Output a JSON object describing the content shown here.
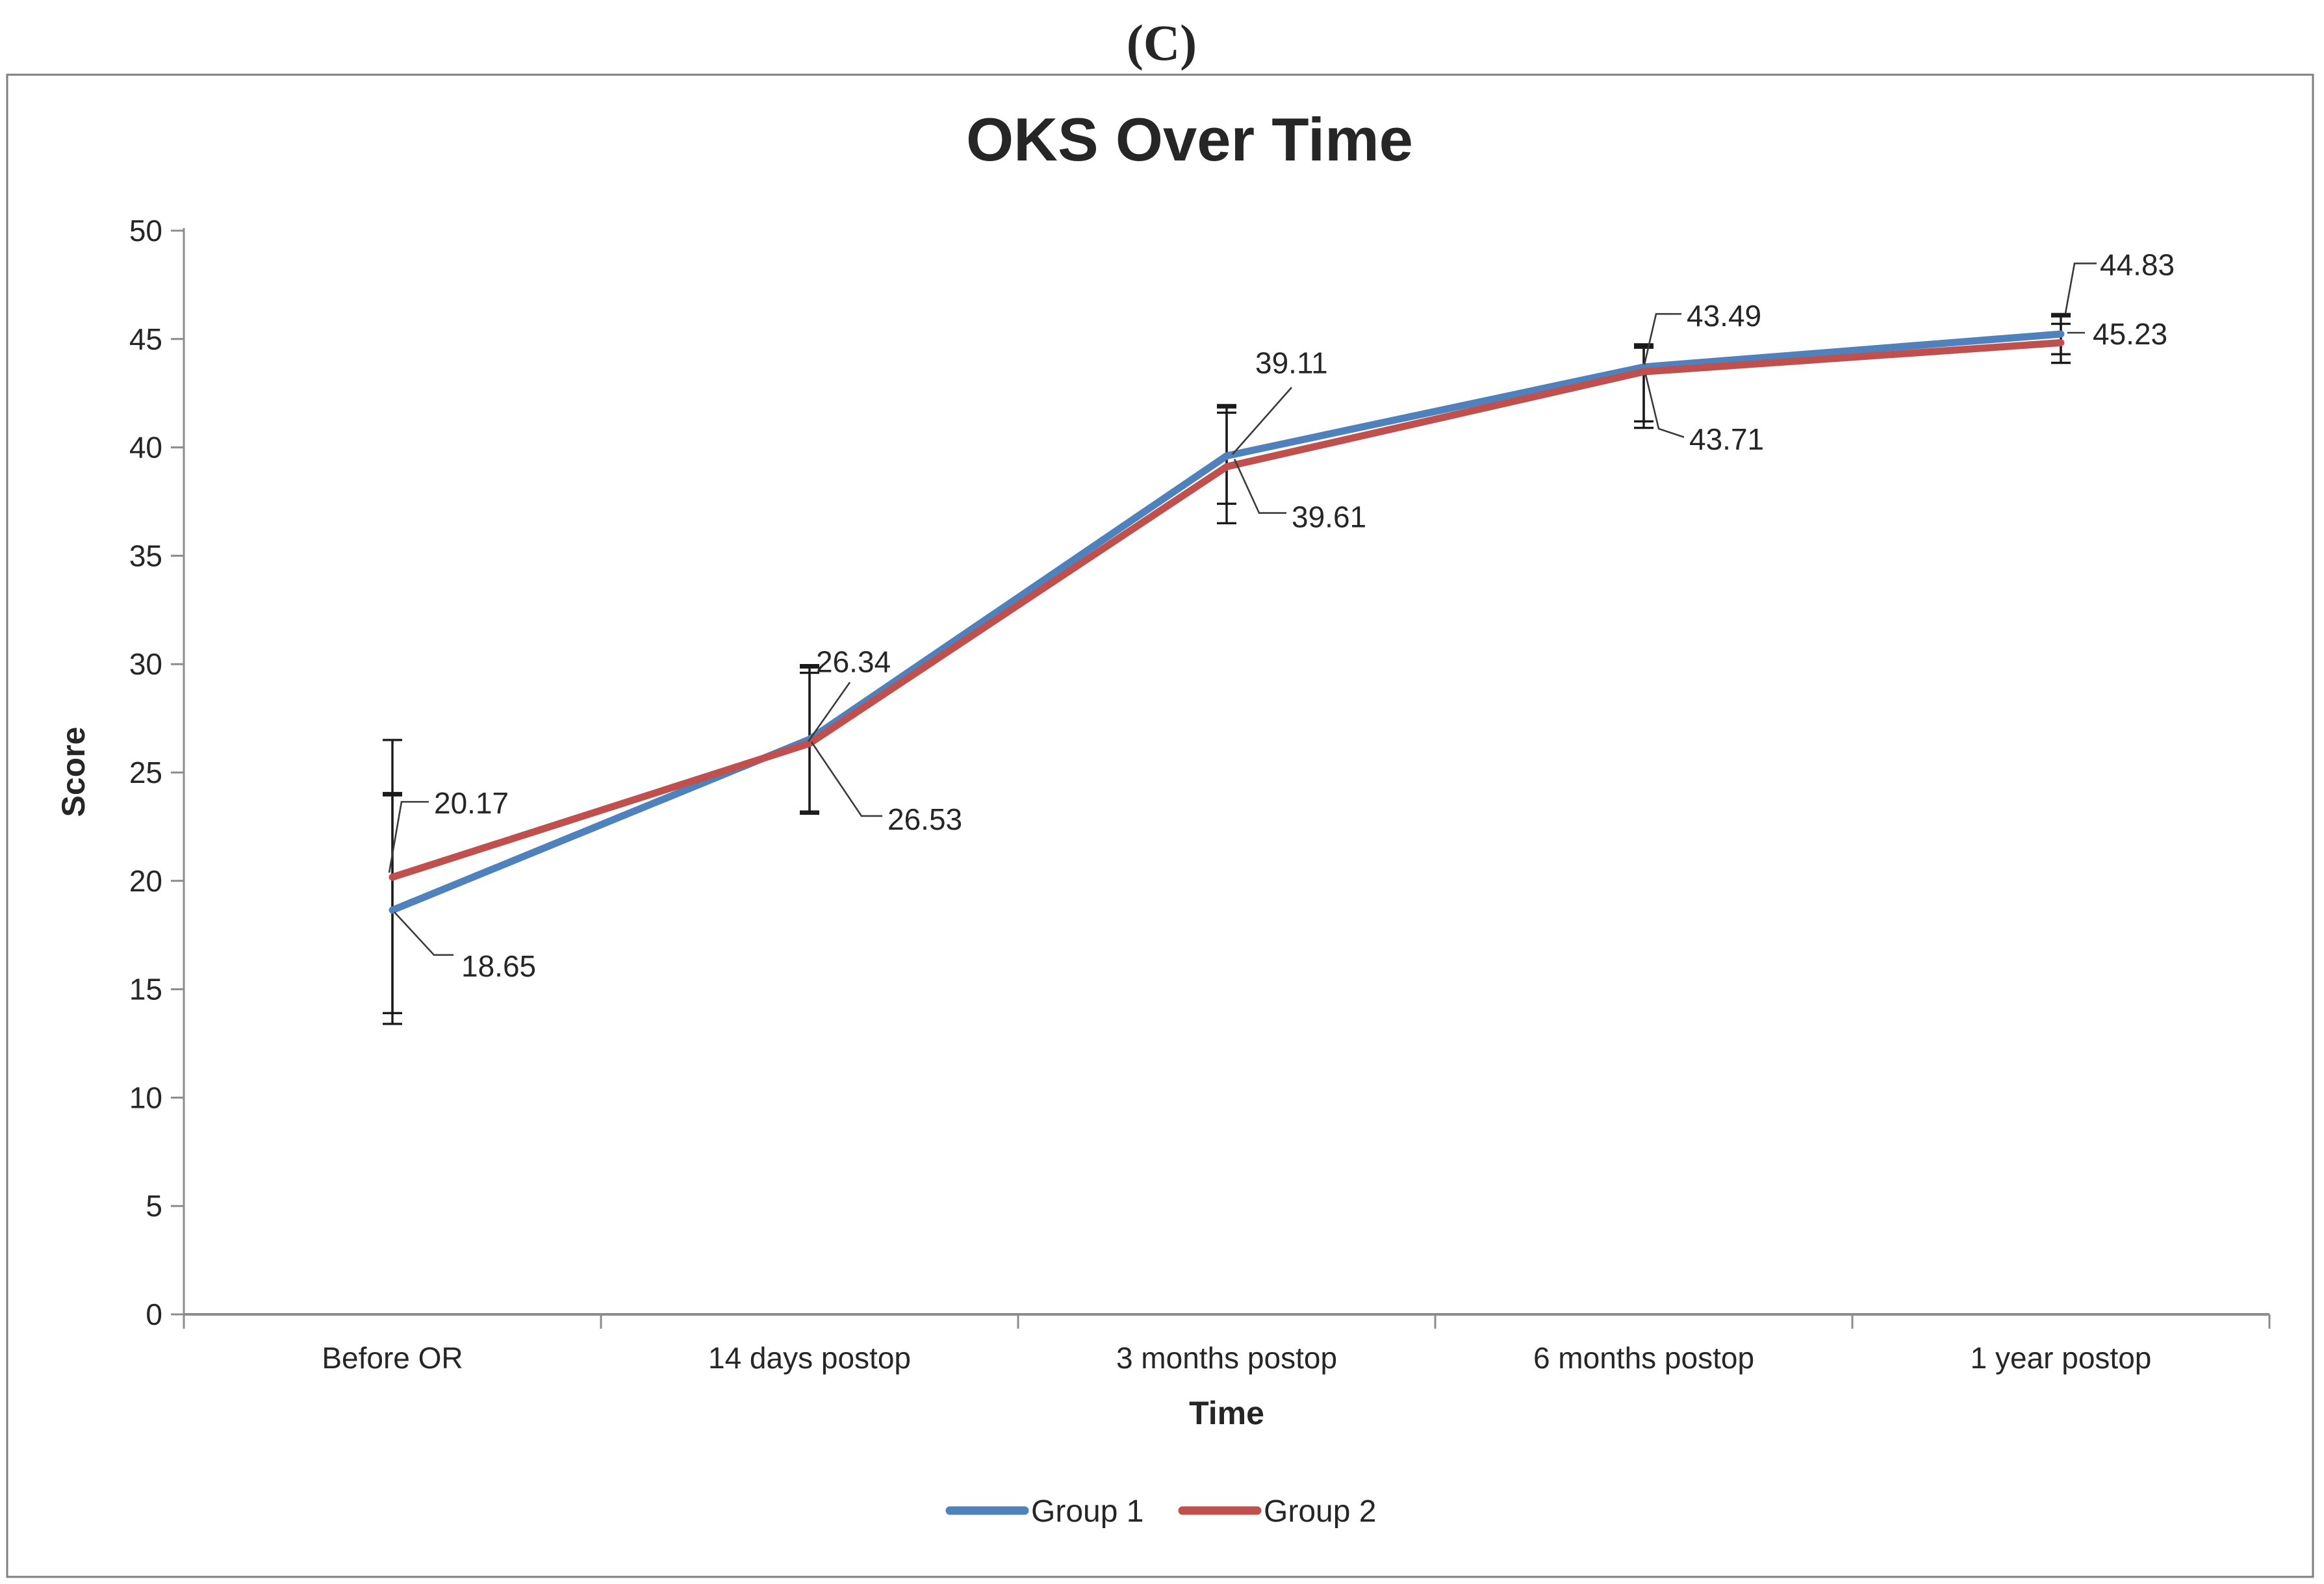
{
  "figure_label": "(C)",
  "chart_data": {
    "type": "line",
    "title": "OKS Over Time",
    "xlabel": "Time",
    "ylabel": "Score",
    "categories": [
      "Before OR",
      "14 days postop",
      "3 months postop",
      "6 months postop",
      "1 year postop"
    ],
    "series": [
      {
        "name": "Group 1",
        "color": "#4F81BD",
        "values": [
          18.65,
          26.53,
          39.61,
          43.71,
          45.23
        ],
        "data_labels": [
          "18.65",
          "26.53",
          "39.61",
          "43.71",
          "45.23"
        ],
        "error_bar_low": [
          13.4,
          23.1,
          37.4,
          41.2,
          44.3
        ],
        "error_bar_high": [
          24.0,
          29.9,
          41.9,
          44.7,
          46.1
        ]
      },
      {
        "name": "Group 2",
        "color": "#C0504D",
        "values": [
          20.17,
          26.34,
          39.11,
          43.49,
          44.83
        ],
        "data_labels": [
          "20.17",
          "26.34",
          "39.11",
          "43.49",
          "44.83"
        ],
        "error_bar_low": [
          13.9,
          23.2,
          36.5,
          40.9,
          43.9
        ],
        "error_bar_high": [
          26.5,
          29.6,
          41.6,
          44.6,
          45.7
        ]
      }
    ],
    "ylim": [
      0,
      50
    ],
    "ytick_step": 5,
    "yticks": [
      0,
      5,
      10,
      15,
      20,
      25,
      30,
      35,
      40,
      45,
      50
    ],
    "grid": false,
    "legend_position": "bottom",
    "error_bars": true,
    "axis_color": "#8C8C8C",
    "error_bar_color": "#1a1a1a",
    "frame_border_color": "#7F7F7F",
    "text_color": "#262626"
  }
}
